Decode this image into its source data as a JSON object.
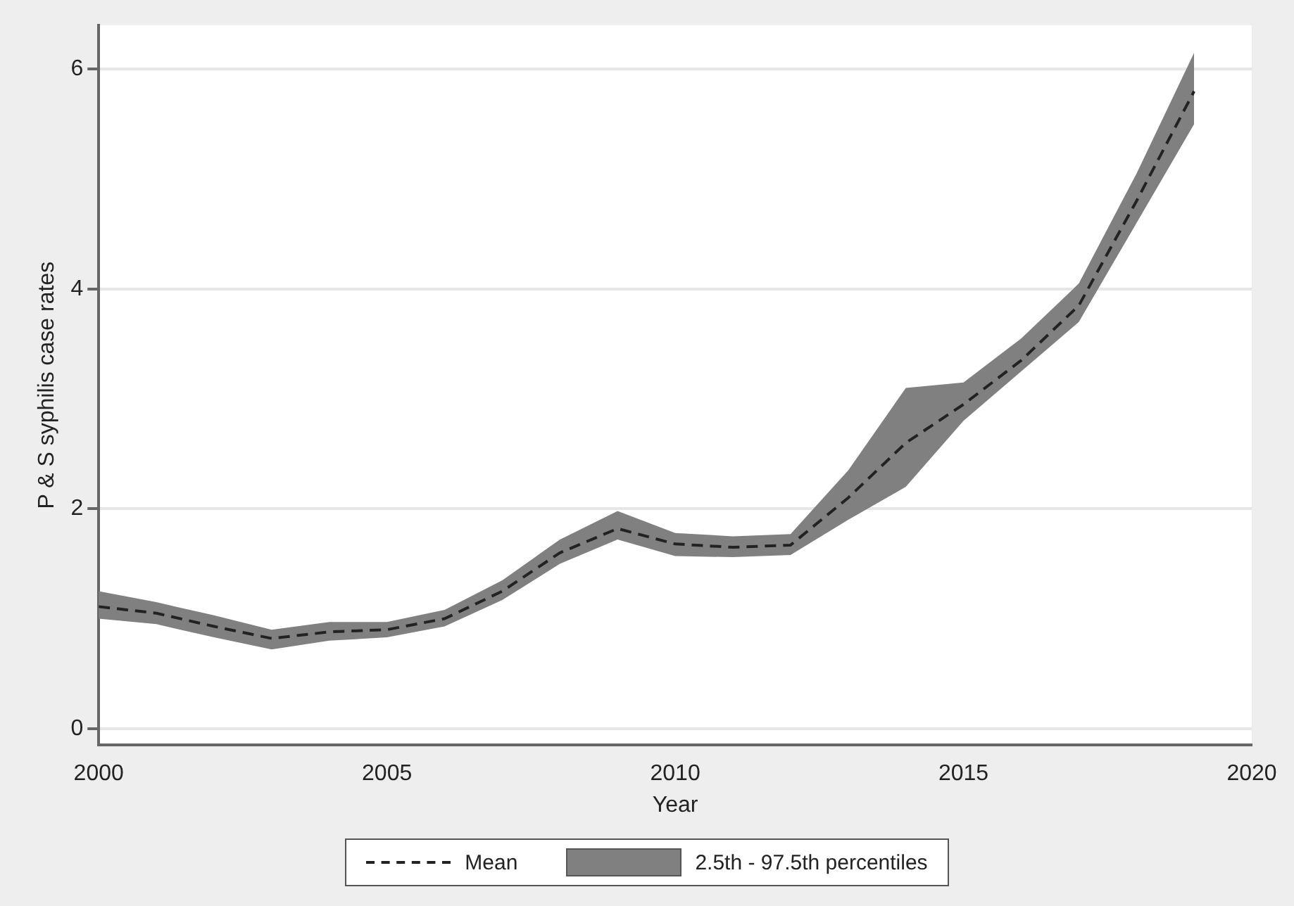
{
  "chart_data": {
    "type": "line",
    "xlabel": "Year",
    "ylabel": "P & S syphilis case rates",
    "x": [
      2000,
      2001,
      2002,
      2003,
      2004,
      2005,
      2006,
      2007,
      2008,
      2009,
      2010,
      2011,
      2012,
      2013,
      2014,
      2015,
      2016,
      2017,
      2018,
      2019
    ],
    "series": [
      {
        "name": "Mean",
        "color": "#222222",
        "line_style": "dashed",
        "values": [
          1.11,
          1.05,
          0.93,
          0.82,
          0.88,
          0.9,
          1.0,
          1.25,
          1.6,
          1.82,
          1.68,
          1.65,
          1.67,
          2.1,
          2.6,
          2.95,
          3.35,
          3.85,
          4.8,
          5.8
        ],
        "lower": [
          1.0,
          0.95,
          0.83,
          0.72,
          0.8,
          0.83,
          0.93,
          1.17,
          1.5,
          1.72,
          1.57,
          1.56,
          1.58,
          1.9,
          2.2,
          2.8,
          3.25,
          3.7,
          4.6,
          5.5
        ],
        "upper": [
          1.25,
          1.15,
          1.03,
          0.9,
          0.97,
          0.97,
          1.08,
          1.35,
          1.72,
          1.98,
          1.78,
          1.75,
          1.77,
          2.35,
          3.1,
          3.15,
          3.55,
          4.05,
          5.05,
          6.15
        ]
      }
    ],
    "annotations": [
      "2.5th - 97.5th percentiles"
    ],
    "xlim": [
      2000,
      2020
    ],
    "xticks": [
      2000,
      2005,
      2010,
      2015,
      2020
    ],
    "ylim": [
      -0.15,
      6.4
    ],
    "yticks": [
      0,
      2,
      4,
      6
    ],
    "grid": "y",
    "legend": "bottom",
    "marker": "none"
  }
}
